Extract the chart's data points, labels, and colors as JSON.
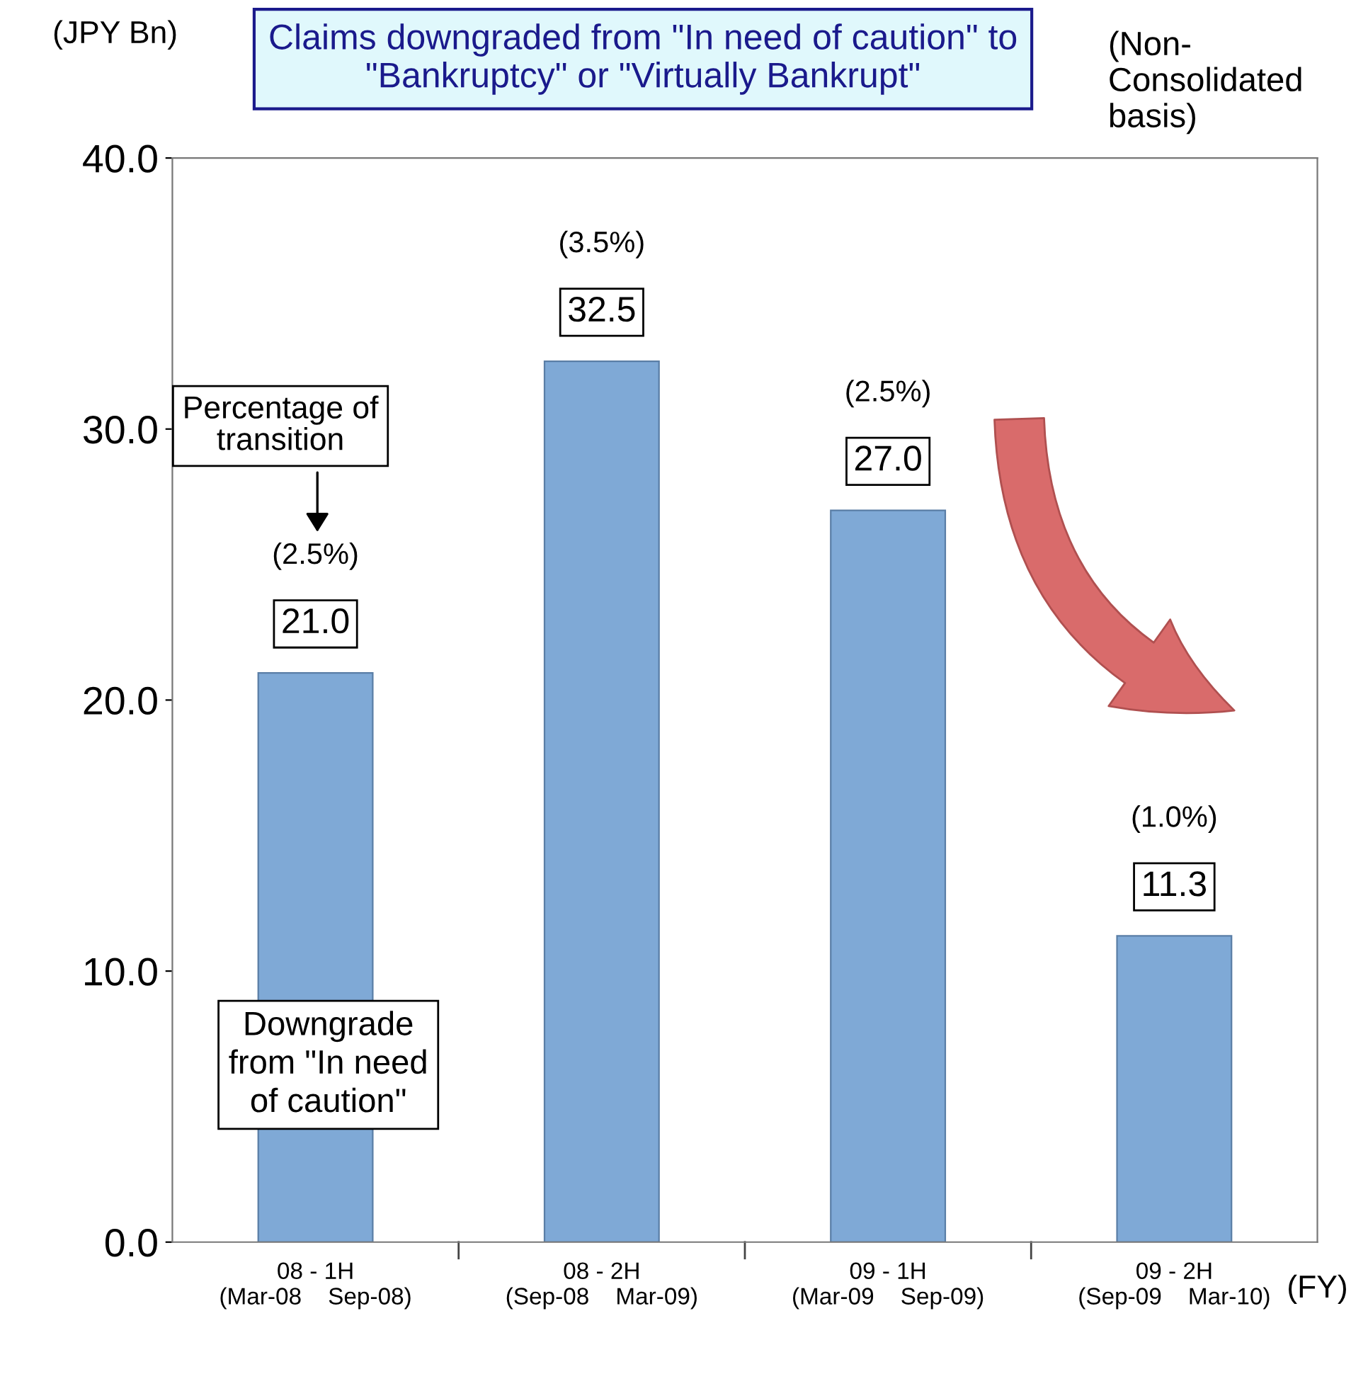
{
  "chart_data": {
    "type": "bar",
    "title": "Claims downgraded from \"In need of caution\" to\n\"Bankruptcy\" or \"Virtually Bankrupt\"",
    "ylabel": "(JPY Bn)",
    "xlabel": "(FY)",
    "categories": [
      "08 - 1H\n(Mar-08    Sep-08)",
      "08 - 2H\n(Sep-08    Mar-09)",
      "09 - 1H\n(Mar-09    Sep-09)",
      "09 - 2H\n(Sep-09    Mar-10)"
    ],
    "values": [
      21.0,
      32.5,
      27.0,
      11.3
    ],
    "value_labels": [
      "21.0",
      "32.5",
      "27.0",
      "11.3"
    ],
    "color": "#7fa9d6",
    "ylim": [
      0,
      40
    ],
    "yticks": [
      {
        "value": 0,
        "label": "0.0"
      },
      {
        "value": 10,
        "label": "10.0"
      },
      {
        "value": 20,
        "label": "20.0"
      },
      {
        "value": 30,
        "label": "30.0"
      },
      {
        "value": 40,
        "label": "40.0"
      }
    ],
    "annotations": [
      "(2.5%)",
      "(3.5%)",
      "(2.5%)",
      "(1.0%)",
      "Percentage of\ntransition",
      "Downgrade\nfrom \"In need\nof caution\"",
      "(Non-\nConsolidated\nbasis)"
    ]
  }
}
